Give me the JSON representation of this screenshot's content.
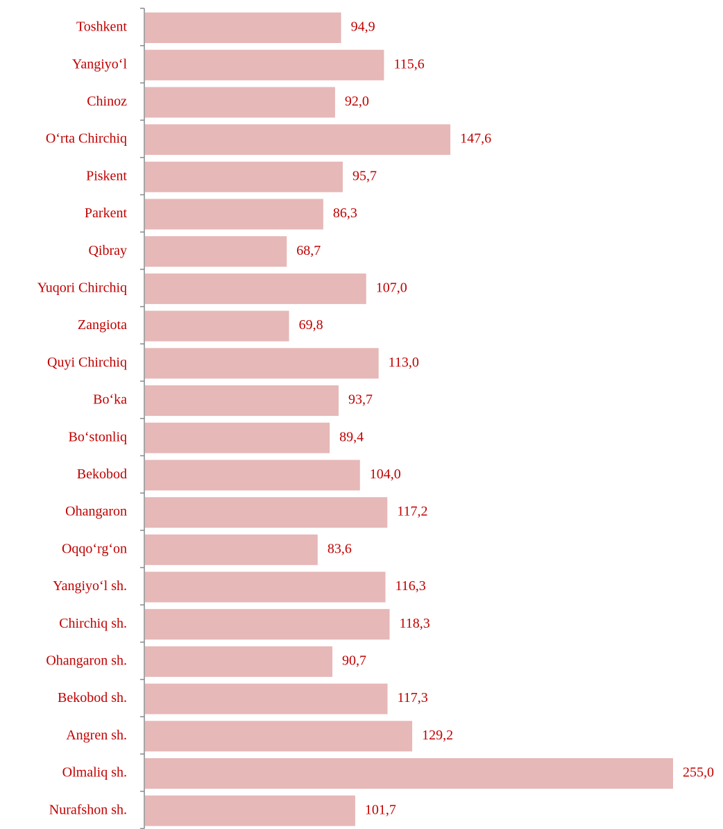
{
  "chart_data": {
    "type": "bar",
    "orientation": "horizontal",
    "categories": [
      "Toshkent",
      "Yangiyo‘l",
      "Chinoz",
      "O‘rta Chirchiq",
      "Piskent",
      "Parkent",
      "Qibray",
      "Yuqori Chirchiq",
      "Zangiota",
      "Quyi Chirchiq",
      "Bo‘ka",
      "Bo‘stonliq",
      "Bekobod",
      "Ohangaron",
      "Oqqo‘rg‘on",
      "Yangiyo‘l sh.",
      "Chirchiq sh.",
      "Ohangaron sh.",
      "Bekobod sh.",
      "Angren sh.",
      "Olmaliq sh.",
      "Nurafshon sh."
    ],
    "values": [
      94.9,
      115.6,
      92.0,
      147.6,
      95.7,
      86.3,
      68.7,
      107.0,
      69.8,
      113.0,
      93.7,
      89.4,
      104.0,
      117.2,
      83.6,
      116.3,
      118.3,
      90.7,
      117.3,
      129.2,
      255.0,
      101.7
    ],
    "value_labels": [
      "94,9",
      "115,6",
      "92,0",
      "147,6",
      "95,7",
      "86,3",
      "68,7",
      "107,0",
      "69,8",
      "113,0",
      "93,7",
      "89,4",
      "104,0",
      "117,2",
      "83,6",
      "116,3",
      "118,3",
      "90,7",
      "117,3",
      "129,2",
      "255,0",
      "101,7"
    ],
    "color": "#e6b8b7"
  }
}
